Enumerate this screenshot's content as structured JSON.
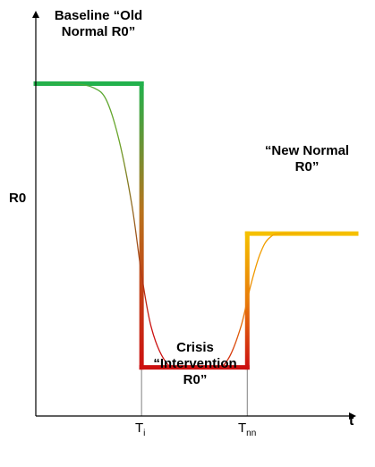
{
  "chart_data": {
    "type": "line",
    "title": "",
    "xlabel": "t",
    "ylabel": "R0",
    "x_ticks": [
      {
        "main": "T",
        "sub": "i",
        "x": 0.33
      },
      {
        "main": "T",
        "sub": "nn",
        "x": 0.66
      }
    ],
    "xlim": [
      0,
      1
    ],
    "ylim": [
      0,
      1
    ],
    "grid": false,
    "legend": "none",
    "annotations": {
      "baseline_line1": "Baseline “Old",
      "baseline_line2": "Normal R0”",
      "new_normal_line1": "“New Normal",
      "new_normal_line2": "R0”",
      "crisis_line1": "Crisis",
      "crisis_line2": "“Intervention",
      "crisis_line3": "R0”"
    },
    "series": [
      {
        "style": "thick-step",
        "points": [
          [
            0.0,
            0.82
          ],
          [
            0.33,
            0.82
          ],
          [
            0.33,
            0.12
          ],
          [
            0.66,
            0.12
          ],
          [
            0.66,
            0.45
          ],
          [
            1.0,
            0.45
          ]
        ],
        "colors": {
          "baseline": "#22b14c",
          "crisis": "#cc1111",
          "new_normal": "#f5c000"
        }
      },
      {
        "style": "thin-smooth",
        "points": [
          [
            0.0,
            0.82
          ],
          [
            0.05,
            0.82
          ],
          [
            0.12,
            0.82
          ],
          [
            0.18,
            0.81
          ],
          [
            0.22,
            0.78
          ],
          [
            0.26,
            0.68
          ],
          [
            0.3,
            0.52
          ],
          [
            0.33,
            0.35
          ],
          [
            0.36,
            0.22
          ],
          [
            0.4,
            0.14
          ],
          [
            0.44,
            0.12
          ],
          [
            0.56,
            0.12
          ],
          [
            0.6,
            0.14
          ],
          [
            0.64,
            0.22
          ],
          [
            0.67,
            0.32
          ],
          [
            0.7,
            0.4
          ],
          [
            0.73,
            0.44
          ],
          [
            0.78,
            0.45
          ],
          [
            1.0,
            0.45
          ]
        ],
        "colors": {
          "start": "#22b14c",
          "mid": "#cc1111",
          "end": "#f5c000"
        }
      }
    ],
    "colors": {
      "axis": "#000000",
      "guide": "#808080"
    }
  }
}
